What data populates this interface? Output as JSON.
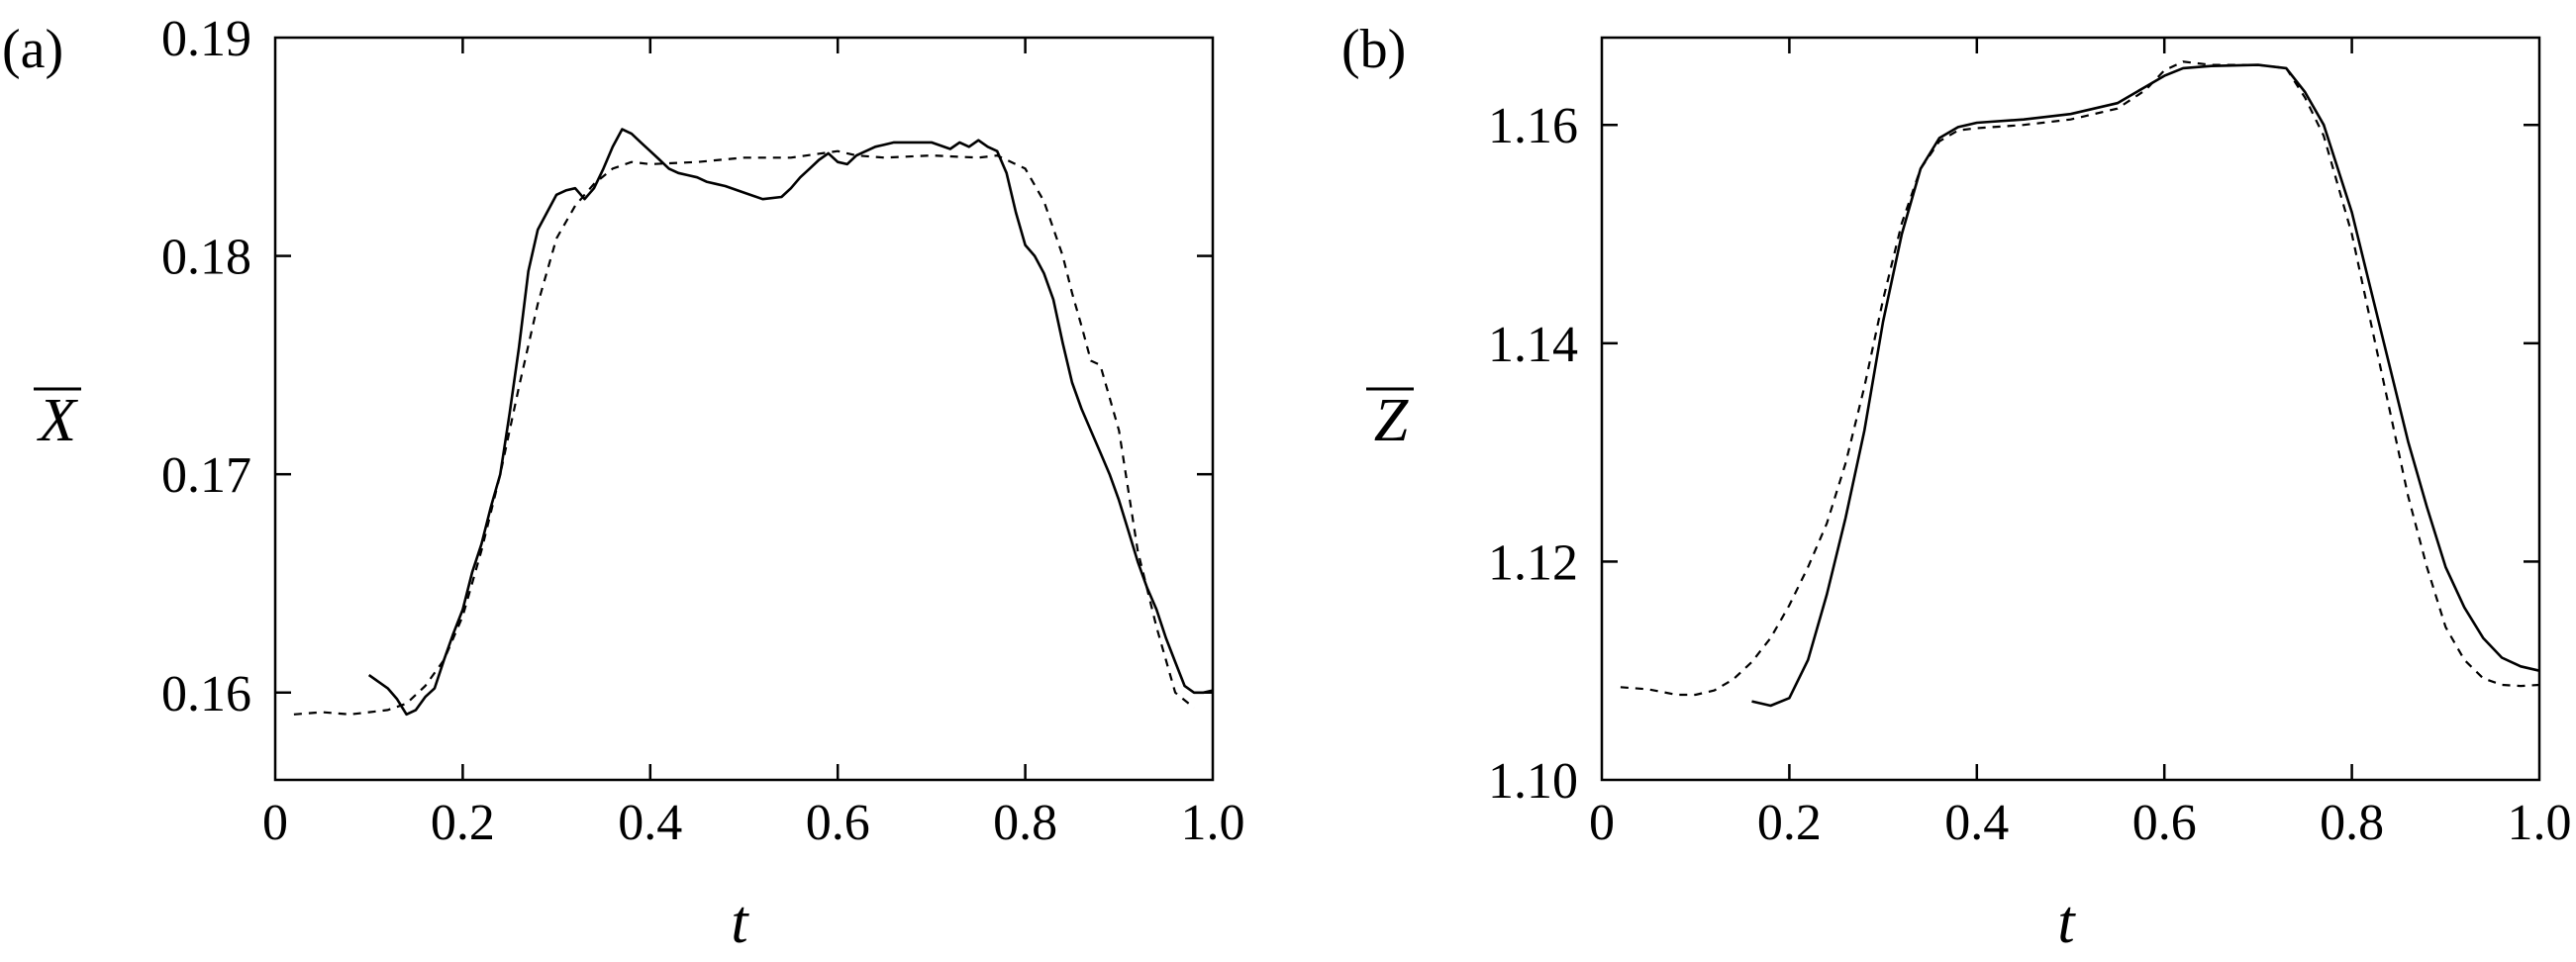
{
  "chart_data": [
    {
      "type": "line",
      "panel_label": "(a)",
      "xlabel": "t",
      "ylabel": "X",
      "ylabel_overline": true,
      "xlim": [
        0,
        1.0
      ],
      "ylim": [
        0.156,
        0.19
      ],
      "x_ticks": [
        0,
        0.2,
        0.4,
        0.6,
        0.8,
        1.0
      ],
      "x_tick_labels": [
        "0",
        "0.2",
        "0.4",
        "0.6",
        "0.8",
        "1.0"
      ],
      "y_ticks": [
        0.16,
        0.17,
        0.18,
        0.19
      ],
      "y_tick_labels": [
        "0.16",
        "0.17",
        "0.18",
        "0.19"
      ],
      "grid": false,
      "series": [
        {
          "style": "solid",
          "x": [
            0.1,
            0.12,
            0.13,
            0.14,
            0.15,
            0.16,
            0.17,
            0.18,
            0.19,
            0.2,
            0.21,
            0.22,
            0.23,
            0.24,
            0.25,
            0.26,
            0.27,
            0.28,
            0.29,
            0.3,
            0.31,
            0.32,
            0.33,
            0.34,
            0.35,
            0.36,
            0.37,
            0.38,
            0.39,
            0.4,
            0.41,
            0.42,
            0.43,
            0.44,
            0.45,
            0.46,
            0.47,
            0.48,
            0.5,
            0.52,
            0.54,
            0.55,
            0.56,
            0.57,
            0.58,
            0.59,
            0.6,
            0.61,
            0.62,
            0.63,
            0.64,
            0.65,
            0.66,
            0.68,
            0.7,
            0.72,
            0.73,
            0.74,
            0.75,
            0.76,
            0.77,
            0.78,
            0.79,
            0.8,
            0.81,
            0.82,
            0.83,
            0.84,
            0.85,
            0.86,
            0.87,
            0.88,
            0.89,
            0.9,
            0.91,
            0.92,
            0.93,
            0.94,
            0.95,
            0.96,
            0.97,
            0.98,
            0.99,
            1.0
          ],
          "y": [
            0.1608,
            0.1602,
            0.1597,
            0.159,
            0.1592,
            0.1598,
            0.1602,
            0.1615,
            0.1627,
            0.1638,
            0.1655,
            0.1668,
            0.1685,
            0.17,
            0.1728,
            0.1758,
            0.1793,
            0.1812,
            0.182,
            0.1828,
            0.183,
            0.1831,
            0.1826,
            0.1831,
            0.184,
            0.185,
            0.1858,
            0.1856,
            0.1852,
            0.1848,
            0.1844,
            0.184,
            0.1838,
            0.1837,
            0.1836,
            0.1834,
            0.1833,
            0.1832,
            0.1829,
            0.1826,
            0.1827,
            0.1831,
            0.1836,
            0.184,
            0.1844,
            0.1847,
            0.1843,
            0.1842,
            0.1846,
            0.1848,
            0.185,
            0.1851,
            0.1852,
            0.1852,
            0.1852,
            0.1849,
            0.1852,
            0.185,
            0.1853,
            0.185,
            0.1848,
            0.1838,
            0.182,
            0.1805,
            0.18,
            0.1792,
            0.178,
            0.176,
            0.1742,
            0.173,
            0.172,
            0.171,
            0.17,
            0.1688,
            0.1674,
            0.166,
            0.1648,
            0.1638,
            0.1625,
            0.1614,
            0.1603,
            0.16,
            0.16,
            0.1601
          ]
        },
        {
          "style": "dashed",
          "x": [
            0.02,
            0.05,
            0.08,
            0.1,
            0.12,
            0.14,
            0.16,
            0.18,
            0.2,
            0.22,
            0.24,
            0.26,
            0.28,
            0.3,
            0.32,
            0.34,
            0.36,
            0.38,
            0.4,
            0.45,
            0.5,
            0.55,
            0.6,
            0.62,
            0.65,
            0.7,
            0.75,
            0.77,
            0.8,
            0.82,
            0.84,
            0.85,
            0.86,
            0.87,
            0.88,
            0.9,
            0.92,
            0.94,
            0.96,
            0.98
          ],
          "y": [
            0.159,
            0.1591,
            0.159,
            0.1591,
            0.1592,
            0.1595,
            0.1603,
            0.1615,
            0.1635,
            0.1665,
            0.17,
            0.174,
            0.1778,
            0.1808,
            0.1823,
            0.1833,
            0.184,
            0.1843,
            0.1842,
            0.1843,
            0.1845,
            0.1845,
            0.1848,
            0.1846,
            0.1845,
            0.1846,
            0.1845,
            0.1846,
            0.184,
            0.1825,
            0.18,
            0.1783,
            0.1768,
            0.1752,
            0.175,
            0.172,
            0.1665,
            0.163,
            0.16,
            0.1593
          ]
        }
      ]
    },
    {
      "type": "line",
      "panel_label": "(b)",
      "xlabel": "t",
      "ylabel": "Z",
      "ylabel_overline": true,
      "xlim": [
        0,
        1.0
      ],
      "ylim": [
        1.1,
        1.168
      ],
      "x_ticks": [
        0,
        0.2,
        0.4,
        0.6,
        0.8,
        1.0
      ],
      "x_tick_labels": [
        "0",
        "0.2",
        "0.4",
        "0.6",
        "0.8",
        "1.0"
      ],
      "y_ticks": [
        1.1,
        1.12,
        1.14,
        1.16
      ],
      "y_tick_labels": [
        "1.10",
        "1.12",
        "1.14",
        "1.16"
      ],
      "grid": false,
      "series": [
        {
          "style": "solid",
          "x": [
            0.16,
            0.18,
            0.2,
            0.22,
            0.24,
            0.26,
            0.28,
            0.3,
            0.32,
            0.34,
            0.36,
            0.38,
            0.4,
            0.45,
            0.5,
            0.55,
            0.58,
            0.6,
            0.62,
            0.65,
            0.7,
            0.73,
            0.75,
            0.77,
            0.8,
            0.82,
            0.84,
            0.86,
            0.88,
            0.9,
            0.92,
            0.94,
            0.96,
            0.98,
            1.0
          ],
          "y": [
            1.1072,
            1.1068,
            1.1075,
            1.111,
            1.117,
            1.124,
            1.132,
            1.142,
            1.15,
            1.156,
            1.1588,
            1.1598,
            1.1602,
            1.1605,
            1.161,
            1.162,
            1.1635,
            1.1645,
            1.1652,
            1.1654,
            1.1655,
            1.1652,
            1.163,
            1.16,
            1.152,
            1.145,
            1.138,
            1.131,
            1.125,
            1.1195,
            1.1158,
            1.113,
            1.1112,
            1.1104,
            1.11
          ]
        },
        {
          "style": "dashed",
          "x": [
            0.02,
            0.05,
            0.08,
            0.1,
            0.12,
            0.14,
            0.16,
            0.18,
            0.2,
            0.22,
            0.24,
            0.26,
            0.28,
            0.3,
            0.32,
            0.34,
            0.36,
            0.38,
            0.4,
            0.45,
            0.5,
            0.55,
            0.58,
            0.6,
            0.62,
            0.65,
            0.7,
            0.73,
            0.75,
            0.77,
            0.8,
            0.82,
            0.84,
            0.86,
            0.88,
            0.9,
            0.92,
            0.94,
            0.96,
            0.98,
            1.0
          ],
          "y": [
            1.1085,
            1.1083,
            1.1078,
            1.1078,
            1.1082,
            1.1092,
            1.1108,
            1.113,
            1.116,
            1.1195,
            1.1235,
            1.129,
            1.136,
            1.144,
            1.151,
            1.156,
            1.1585,
            1.1595,
            1.1597,
            1.16,
            1.1605,
            1.1615,
            1.1632,
            1.165,
            1.1658,
            1.1655,
            1.1655,
            1.1652,
            1.1625,
            1.159,
            1.15,
            1.142,
            1.134,
            1.126,
            1.1195,
            1.114,
            1.111,
            1.1093,
            1.1087,
            1.1086,
            1.1087
          ]
        }
      ]
    }
  ]
}
